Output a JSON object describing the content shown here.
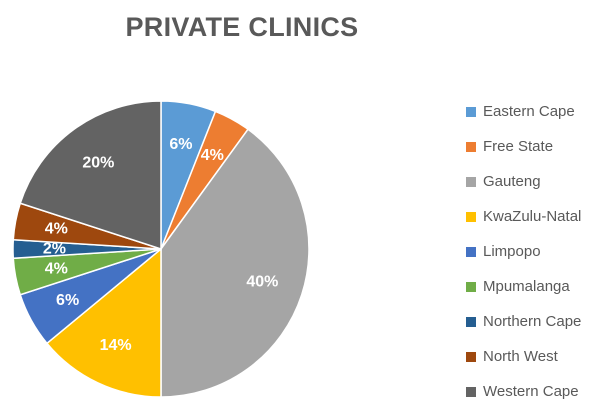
{
  "chart_data": {
    "type": "pie",
    "title": "PRIVATE CLINICS",
    "categories": [
      "Eastern Cape",
      "Free State",
      "Gauteng",
      "KwaZulu-Natal",
      "Limpopo",
      "Mpumalanga",
      "Northern Cape",
      "North West",
      "Western Cape"
    ],
    "values": [
      6,
      4,
      40,
      14,
      6,
      4,
      2,
      4,
      20
    ],
    "labels": [
      "6%",
      "4%",
      "40%",
      "14%",
      "6%",
      "4%",
      "2%",
      "4%",
      "20%"
    ],
    "colors": [
      "#5B9BD5",
      "#ED7D31",
      "#A5A5A5",
      "#FFC000",
      "#4472C4",
      "#70AD47",
      "#255E91",
      "#9E480E",
      "#636363"
    ],
    "legend_position": "right",
    "start_angle_deg": 0,
    "direction": "clockwise"
  }
}
